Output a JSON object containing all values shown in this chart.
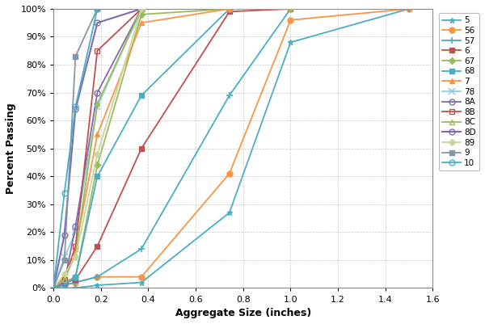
{
  "title": "",
  "xlabel": "Aggregate Size (inches)",
  "ylabel": "Percent Passing",
  "xlim": [
    0,
    1.6
  ],
  "ylim": [
    0,
    1.0
  ],
  "series": {
    "5": {
      "x": [
        0.0,
        0.046,
        0.093,
        0.185,
        0.371,
        0.742,
        1.0,
        1.5
      ],
      "y": [
        0.0,
        0.0,
        0.0,
        0.01,
        0.02,
        0.27,
        0.88,
        1.0
      ]
    },
    "56": {
      "x": [
        0.0,
        0.046,
        0.093,
        0.185,
        0.371,
        0.742,
        1.0,
        1.5
      ],
      "y": [
        0.0,
        0.01,
        0.02,
        0.04,
        0.04,
        0.41,
        0.96,
        1.0
      ]
    },
    "57": {
      "x": [
        0.0,
        0.046,
        0.093,
        0.185,
        0.371,
        0.742,
        1.0,
        1.5
      ],
      "y": [
        0.0,
        0.01,
        0.02,
        0.04,
        0.14,
        0.69,
        1.0,
        1.0
      ]
    },
    "6": {
      "x": [
        0.0,
        0.046,
        0.093,
        0.185,
        0.371,
        0.742,
        1.0
      ],
      "y": [
        0.0,
        0.02,
        0.03,
        0.15,
        0.5,
        0.99,
        1.0
      ]
    },
    "67": {
      "x": [
        0.0,
        0.046,
        0.093,
        0.185,
        0.371,
        0.742,
        1.0
      ],
      "y": [
        0.0,
        0.02,
        0.04,
        0.44,
        0.98,
        1.0,
        1.0
      ]
    },
    "68": {
      "x": [
        0.0,
        0.046,
        0.093,
        0.185,
        0.371,
        0.742
      ],
      "y": [
        0.0,
        0.01,
        0.04,
        0.4,
        0.69,
        1.0
      ]
    },
    "7": {
      "x": [
        0.0,
        0.046,
        0.093,
        0.185,
        0.371,
        0.742
      ],
      "y": [
        0.0,
        0.04,
        0.14,
        0.55,
        0.95,
        1.0
      ]
    },
    "78": {
      "x": [
        0.0,
        0.046,
        0.093,
        0.185,
        0.371
      ],
      "y": [
        0.0,
        0.11,
        0.2,
        0.65,
        1.0
      ]
    },
    "8A": {
      "x": [
        0.0,
        0.046,
        0.093,
        0.185,
        0.371
      ],
      "y": [
        0.0,
        0.02,
        0.22,
        0.7,
        1.0
      ]
    },
    "8B": {
      "x": [
        0.0,
        0.046,
        0.093,
        0.185,
        0.371
      ],
      "y": [
        0.0,
        0.03,
        0.15,
        0.85,
        1.0
      ]
    },
    "8C": {
      "x": [
        0.0,
        0.046,
        0.093,
        0.185,
        0.371
      ],
      "y": [
        0.0,
        0.03,
        0.12,
        0.66,
        1.0
      ]
    },
    "8D": {
      "x": [
        0.0,
        0.046,
        0.093,
        0.185,
        0.371
      ],
      "y": [
        0.0,
        0.19,
        0.64,
        0.95,
        1.0
      ]
    },
    "89": {
      "x": [
        0.0,
        0.046,
        0.093,
        0.185,
        0.371
      ],
      "y": [
        0.0,
        0.05,
        0.11,
        0.48,
        1.0
      ]
    },
    "9": {
      "x": [
        0.0,
        0.046,
        0.093,
        0.185
      ],
      "y": [
        0.0,
        0.1,
        0.83,
        1.0
      ]
    },
    "10": {
      "x": [
        0.0,
        0.046,
        0.093,
        0.185
      ],
      "y": [
        0.0,
        0.34,
        0.65,
        1.0
      ]
    }
  },
  "styles": {
    "5": {
      "color": "#4bacc6",
      "marker": "*",
      "ms": 5,
      "mfc": "#4bacc6",
      "ls": "-",
      "lw": 1.3,
      "mew": 1.0
    },
    "56": {
      "color": "#f79646",
      "marker": "o",
      "ms": 5,
      "mfc": "#f79646",
      "ls": "-",
      "lw": 1.3,
      "mew": 1.0
    },
    "57": {
      "color": "#4bacc6",
      "marker": "+",
      "ms": 6,
      "mfc": "#4bacc6",
      "ls": "-",
      "lw": 1.3,
      "mew": 1.2
    },
    "6": {
      "color": "#c0504d",
      "marker": "s",
      "ms": 4,
      "mfc": "#c0504d",
      "ls": "-",
      "lw": 1.3,
      "mew": 1.0
    },
    "67": {
      "color": "#9bbb59",
      "marker": "D",
      "ms": 4,
      "mfc": "#9bbb59",
      "ls": "-",
      "lw": 1.3,
      "mew": 1.0
    },
    "68": {
      "color": "#4bacc6",
      "marker": "s",
      "ms": 5,
      "mfc": "#4bacc6",
      "ls": "-",
      "lw": 1.3,
      "mew": 1.0
    },
    "7": {
      "color": "#f79646",
      "marker": "^",
      "ms": 5,
      "mfc": "#f79646",
      "ls": "-",
      "lw": 1.3,
      "mew": 1.0
    },
    "78": {
      "color": "#92cddc",
      "marker": "x",
      "ms": 6,
      "mfc": "#92cddc",
      "ls": "-",
      "lw": 1.3,
      "mew": 1.2
    },
    "8A": {
      "color": "#7f6ab0",
      "marker": "o",
      "ms": 5,
      "mfc": "none",
      "ls": "-",
      "lw": 1.3,
      "mew": 1.0
    },
    "8B": {
      "color": "#c0504d",
      "marker": "s",
      "ms": 5,
      "mfc": "none",
      "ls": "-",
      "lw": 1.3,
      "mew": 1.0
    },
    "8C": {
      "color": "#9bbb59",
      "marker": "^",
      "ms": 5,
      "mfc": "none",
      "ls": "-",
      "lw": 1.3,
      "mew": 1.0
    },
    "8D": {
      "color": "#7f6ab0",
      "marker": "o",
      "ms": 5,
      "mfc": "none",
      "ls": "-",
      "lw": 1.5,
      "mew": 1.0
    },
    "89": {
      "color": "#c6d69c",
      "marker": "D",
      "ms": 4,
      "mfc": "#c6d69c",
      "ls": "-",
      "lw": 1.3,
      "mew": 1.0
    },
    "9": {
      "color": "#8696a7",
      "marker": "s",
      "ms": 4,
      "mfc": "#8696a7",
      "ls": "-",
      "lw": 1.3,
      "mew": 1.0
    },
    "10": {
      "color": "#4bacc6",
      "marker": "o",
      "ms": 5,
      "mfc": "none",
      "ls": "-",
      "lw": 1.3,
      "mew": 1.0
    }
  },
  "xticks": [
    0.0,
    0.2,
    0.4,
    0.6,
    0.8,
    1.0,
    1.2,
    1.4,
    1.6
  ],
  "yticks": [
    0.0,
    0.1,
    0.2,
    0.3,
    0.4,
    0.5,
    0.6,
    0.7,
    0.8,
    0.9,
    1.0
  ],
  "background_color": "#ffffff",
  "grid_color": "#c8c8c8",
  "figsize": [
    6.0,
    4.01
  ],
  "dpi": 100
}
